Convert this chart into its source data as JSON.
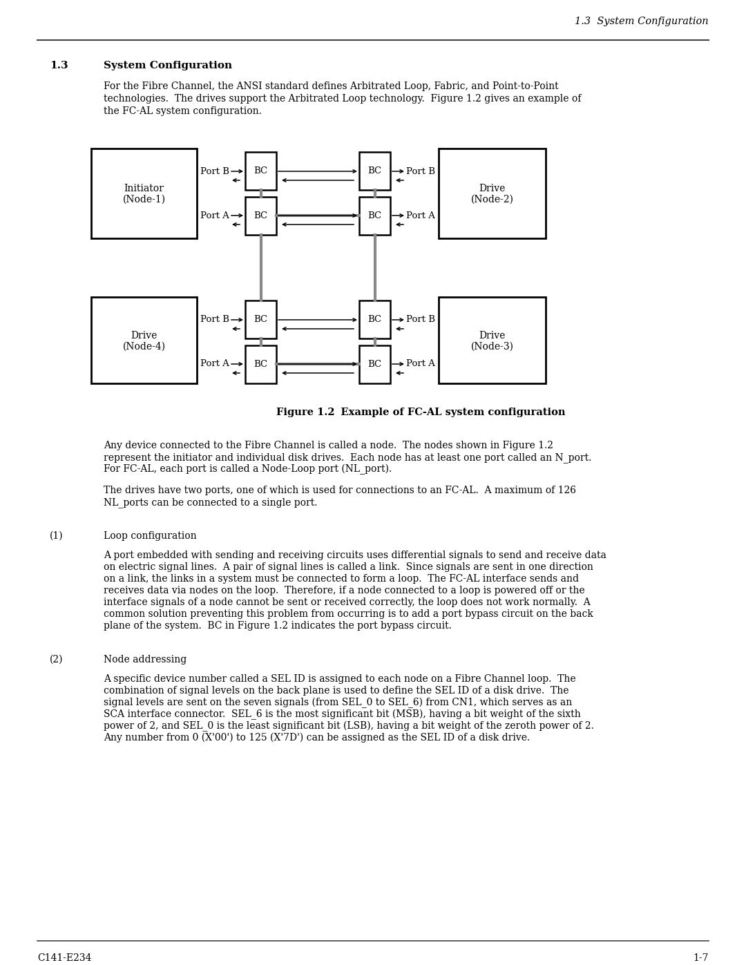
{
  "page_header": "1.3  System Configuration",
  "section_number": "1.3",
  "section_title": "System Configuration",
  "intro_line1": "For the Fibre Channel, the ANSI standard defines Arbitrated Loop, Fabric, and Point-to-Point",
  "intro_line2": "technologies.  The drives support the Arbitrated Loop technology.  Figure 1.2 gives an example of",
  "intro_line3": "the FC-AL system configuration.",
  "figure_caption_bold": "Figure 1.2",
  "figure_caption_rest": "    Example of FC-AL system configuration",
  "para1_line1": "Any device connected to the Fibre Channel is called a node.  The nodes shown in Figure 1.2",
  "para1_line2": "represent the initiator and individual disk drives.  Each node has at least one port called an N_port.",
  "para1_line3": "For FC-AL, each port is called a Node-Loop port (NL_port).",
  "para2_line1": "The drives have two ports, one of which is used for connections to an FC-AL.  A maximum of 126",
  "para2_line2": "NL_ports can be connected to a single port.",
  "section2_number": "(1)",
  "section2_title": "Loop configuration",
  "para3_line1": "A port embedded with sending and receiving circuits uses differential signals to send and receive data",
  "para3_line2": "on electric signal lines.  A pair of signal lines is called a link.  Since signals are sent in one direction",
  "para3_line3": "on a link, the links in a system must be connected to form a loop.  The FC-AL interface sends and",
  "para3_line4": "receives data via nodes on the loop.  Therefore, if a node connected to a loop is powered off or the",
  "para3_line5": "interface signals of a node cannot be sent or received correctly, the loop does not work normally.  A",
  "para3_line6": "common solution preventing this problem from occurring is to add a port bypass circuit on the back",
  "para3_line7": "plane of the system.  BC in Figure 1.2 indicates the port bypass circuit.",
  "section3_number": "(2)",
  "section3_title": "Node addressing",
  "para4_line1": "A specific device number called a SEL ID is assigned to each node on a Fibre Channel loop.  The",
  "para4_line2": "combination of signal levels on the back plane is used to define the SEL ID of a disk drive.  The",
  "para4_line3": "signal levels are sent on the seven signals (from SEL_0 to SEL_6) from CN1, which serves as an",
  "para4_line4": "SCA interface connector.  SEL_6 is the most significant bit (MSB), having a bit weight of the sixth",
  "para4_line5": "power of 2, and SEL_0 is the least significant bit (LSB), having a bit weight of the zeroth power of 2.",
  "para4_line6": "Any number from 0 (X'00') to 125 (X'7D') can be assigned as the SEL ID of a disk drive.",
  "footer_left": "C141-E234",
  "footer_right": "1-7"
}
